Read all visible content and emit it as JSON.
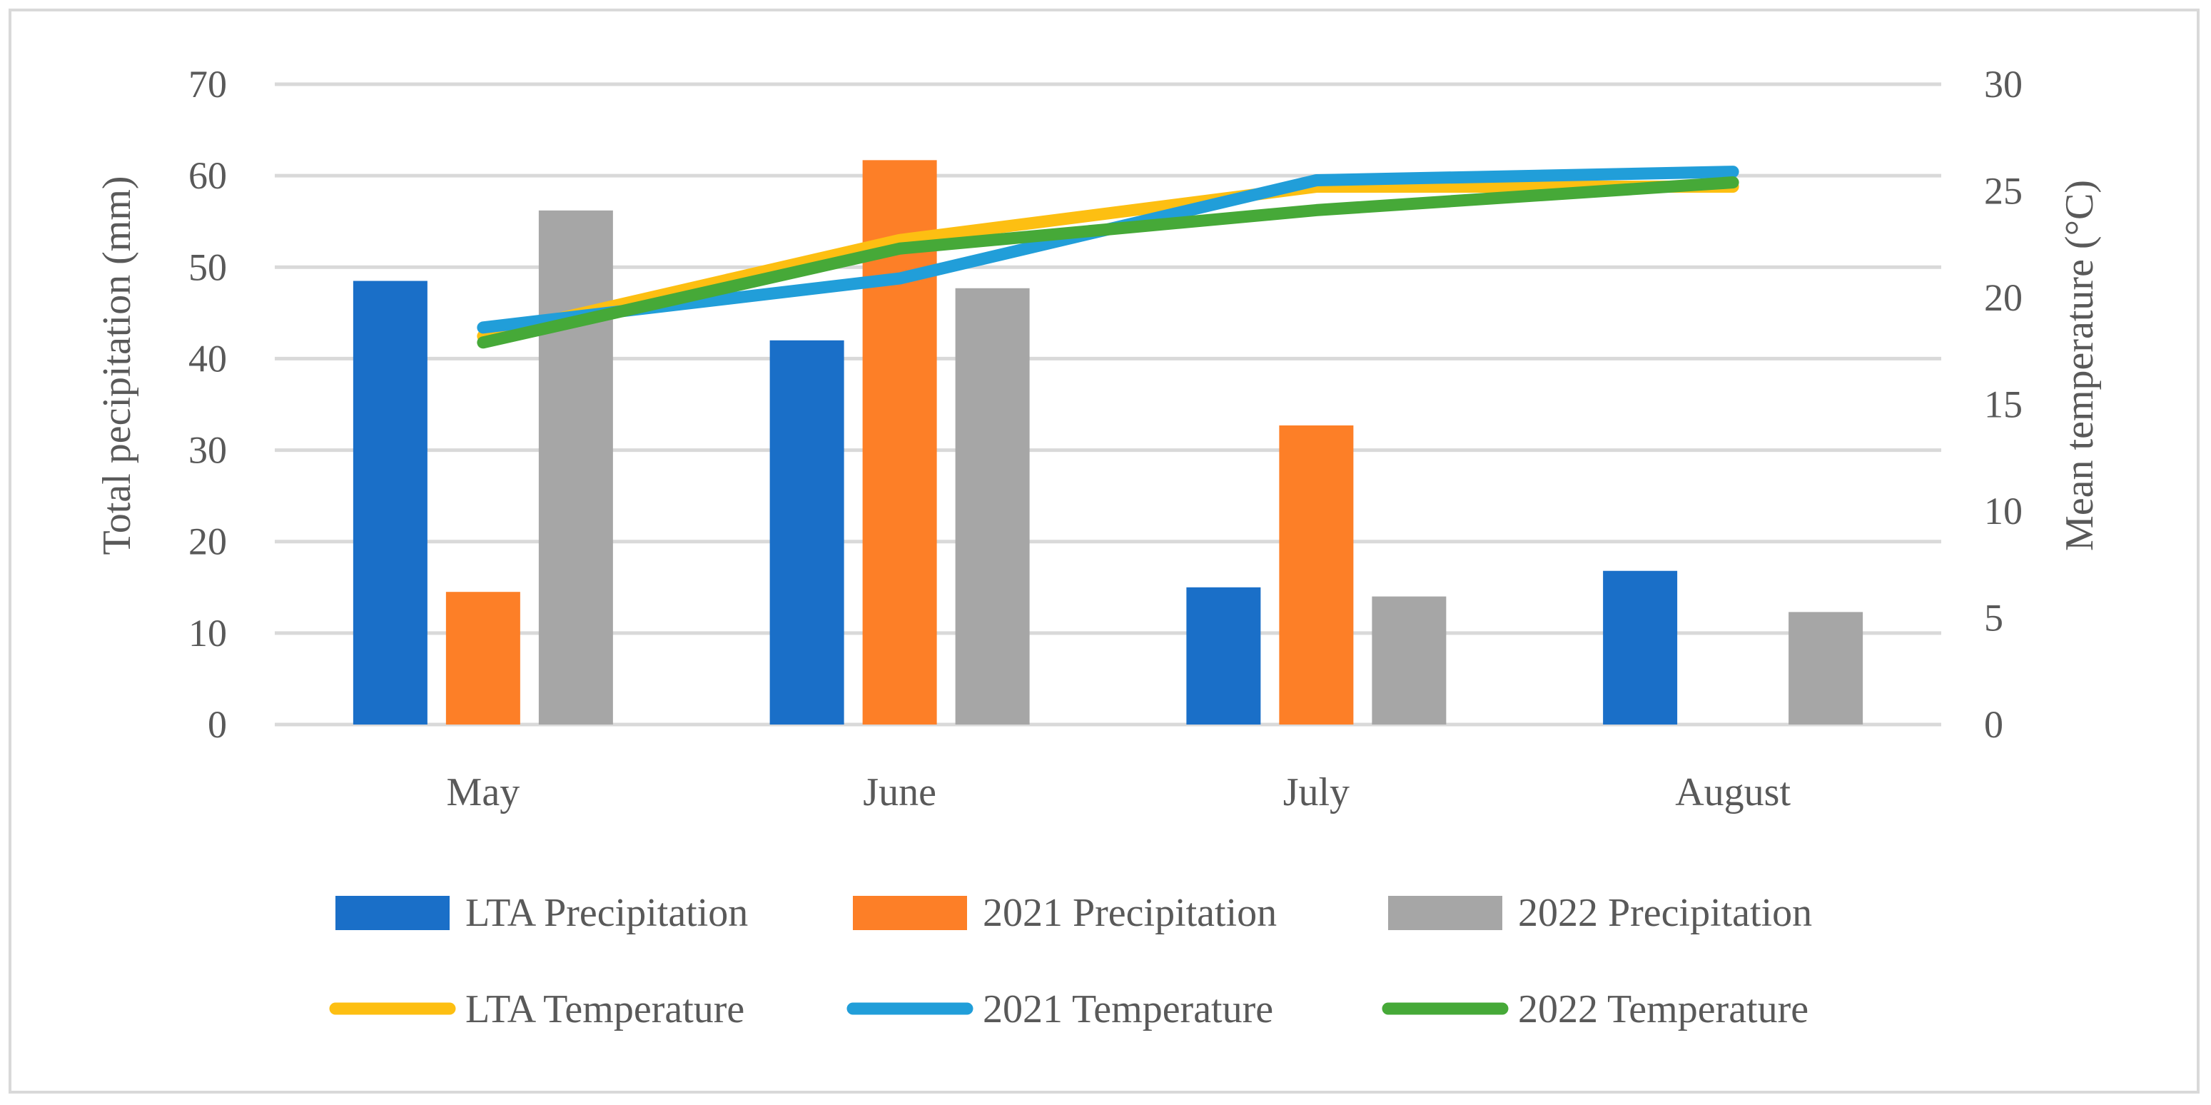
{
  "chart_data": {
    "type": "bar",
    "title": "",
    "categories": [
      "May",
      "June",
      "July",
      "August"
    ],
    "left_axis": {
      "label": "Total pecipitation (mm)",
      "ylim": [
        0,
        70
      ],
      "ticks": [
        0,
        10,
        20,
        30,
        40,
        50,
        60,
        70
      ]
    },
    "right_axis": {
      "label": "Mean temperature (°C)",
      "ylim": [
        0,
        30
      ],
      "ticks": [
        0,
        5,
        10,
        15,
        20,
        25,
        30
      ]
    },
    "grid": true,
    "legend_position": "bottom",
    "bar_series": [
      {
        "name": "LTA Precipitation",
        "color": "#1a6fc8",
        "values": [
          48.5,
          42.0,
          15.0,
          16.8
        ]
      },
      {
        "name": "2021 Precipitation",
        "color": "#fd7f27",
        "values": [
          14.5,
          61.7,
          32.7,
          0
        ]
      },
      {
        "name": "2022 Precipitation",
        "color": "#a6a6a6",
        "values": [
          56.2,
          47.7,
          14.0,
          12.3
        ]
      }
    ],
    "line_series": [
      {
        "name": "LTA Temperature",
        "color": "#fdbf12",
        "values": [
          18.2,
          22.7,
          25.2,
          25.2
        ]
      },
      {
        "name": "2021 Temperature",
        "color": "#219ed9",
        "values": [
          18.6,
          20.9,
          25.5,
          25.9
        ]
      },
      {
        "name": "2022 Temperature",
        "color": "#46a938",
        "values": [
          17.9,
          22.3,
          24.1,
          25.4
        ]
      }
    ]
  }
}
